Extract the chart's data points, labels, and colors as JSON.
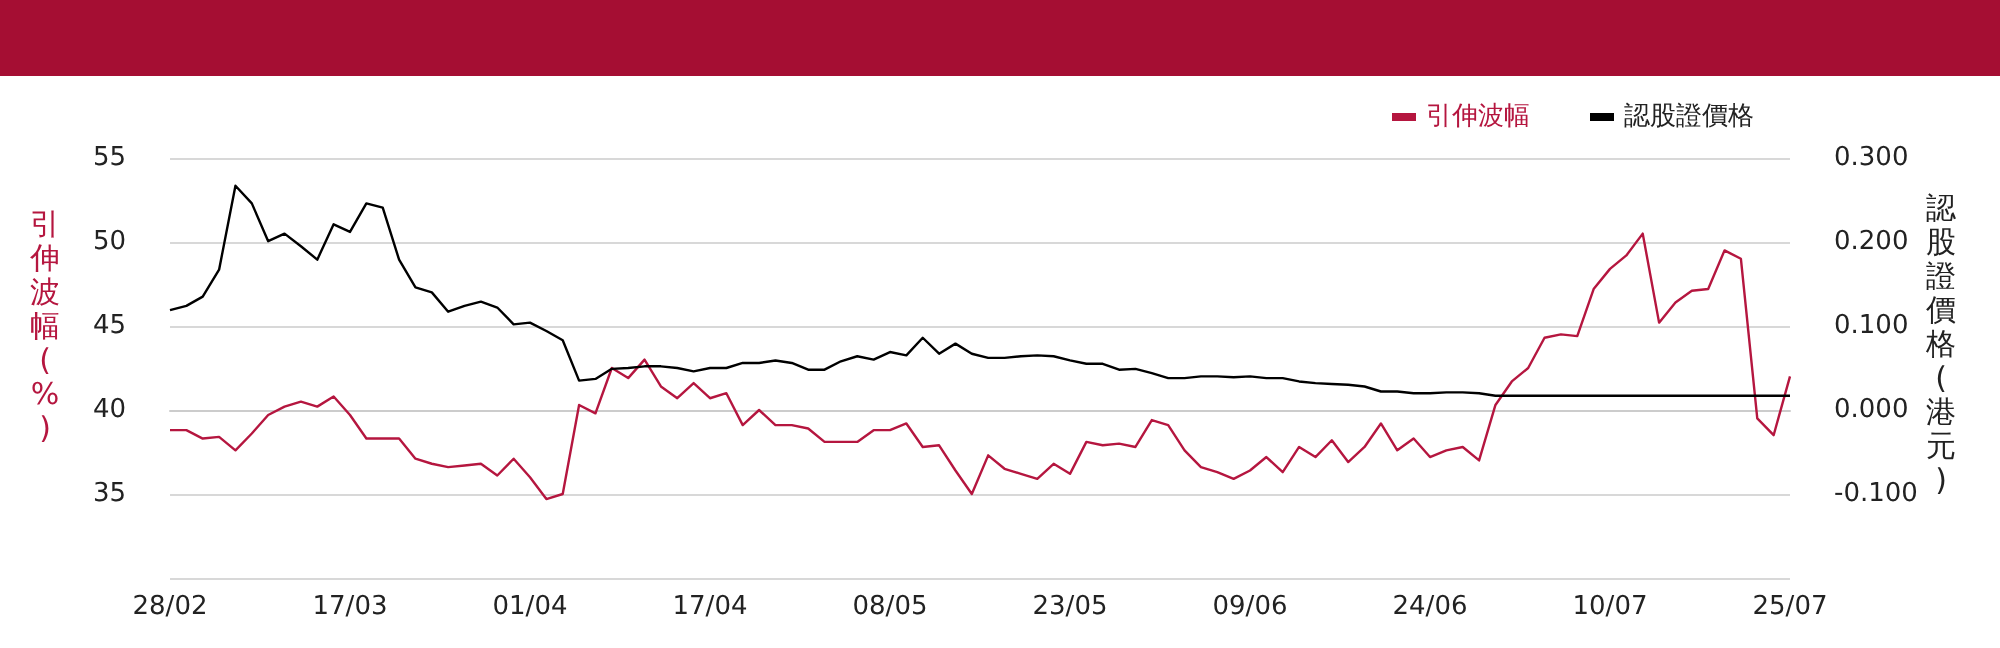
{
  "chart_data": {
    "type": "line",
    "categories": [
      "28/02",
      null,
      null,
      null,
      null,
      null,
      null,
      null,
      null,
      null,
      null,
      "17/03",
      null,
      null,
      null,
      null,
      null,
      null,
      null,
      null,
      null,
      null,
      "01/04",
      null,
      null,
      null,
      null,
      null,
      null,
      null,
      null,
      null,
      null,
      "17/04",
      null,
      null,
      null,
      null,
      null,
      null,
      null,
      null,
      null,
      null,
      "08/05",
      null,
      null,
      null,
      null,
      null,
      null,
      null,
      null,
      null,
      null,
      "23/05",
      null,
      null,
      null,
      null,
      null,
      null,
      null,
      null,
      null,
      null,
      "09/06",
      null,
      null,
      null,
      null,
      null,
      null,
      null,
      null,
      null,
      null,
      "24/06",
      null,
      null,
      null,
      null,
      null,
      null,
      null,
      null,
      null,
      null,
      "10/07",
      null,
      null,
      null,
      null,
      null,
      null,
      null,
      null,
      null,
      null,
      "25/07"
    ],
    "series": [
      {
        "name": "引伸波幅",
        "color": "#b5163f",
        "values": [
          38.8,
          38.8,
          38.3,
          38.4,
          37.6,
          38.6,
          39.7,
          40.2,
          40.5,
          40.2,
          40.8,
          39.7,
          38.3,
          38.3,
          38.3,
          37.1,
          36.8,
          36.6,
          36.7,
          36.8,
          36.1,
          37.1,
          36.0,
          34.7,
          35.0,
          40.3,
          39.8,
          42.5,
          41.9,
          43.0,
          41.4,
          40.7,
          41.6,
          40.7,
          41.0,
          39.1,
          40.0,
          39.1,
          39.1,
          38.9,
          38.1,
          38.1,
          38.1,
          38.8,
          38.8,
          39.2,
          37.8,
          37.9,
          36.4,
          35.0,
          37.3,
          36.5,
          36.2,
          35.9,
          36.8,
          36.2,
          38.1,
          37.9,
          38.0,
          37.8,
          39.4,
          39.1,
          37.6,
          36.6,
          36.3,
          35.9,
          36.4,
          37.2,
          36.3,
          37.8,
          37.2,
          38.2,
          36.9,
          37.8,
          39.2,
          37.6,
          38.3,
          37.2,
          37.6,
          37.8,
          37.0,
          40.3,
          41.7,
          42.5,
          44.3,
          44.5,
          44.4,
          47.2,
          48.4,
          49.2,
          50.5,
          45.2,
          46.4,
          47.1,
          47.2,
          49.5,
          49.0,
          39.5,
          38.5,
          42.0
        ]
      },
      {
        "name": "認股證價格",
        "color": "#000000",
        "axis": "y2",
        "values": [
          0.119,
          0.124,
          0.135,
          0.167,
          0.267,
          0.246,
          0.201,
          0.21,
          0.195,
          0.179,
          0.221,
          0.212,
          0.246,
          0.241,
          0.179,
          0.146,
          0.14,
          0.117,
          0.124,
          0.129,
          0.122,
          0.102,
          0.104,
          0.094,
          0.083,
          0.035,
          0.037,
          0.049,
          0.05,
          0.052,
          0.052,
          0.05,
          0.046,
          0.05,
          0.05,
          0.056,
          0.056,
          0.059,
          0.056,
          0.048,
          0.048,
          0.058,
          0.064,
          0.06,
          0.069,
          0.065,
          0.086,
          0.067,
          0.079,
          0.067,
          0.062,
          0.062,
          0.064,
          0.065,
          0.064,
          0.059,
          0.055,
          0.055,
          0.048,
          0.049,
          0.044,
          0.038,
          0.038,
          0.04,
          0.04,
          0.039,
          0.04,
          0.038,
          0.038,
          0.034,
          0.032,
          0.031,
          0.03,
          0.028,
          0.022,
          0.022,
          0.02,
          0.02,
          0.021,
          0.021,
          0.02,
          0.017,
          0.017,
          0.017,
          0.017,
          0.017,
          0.017,
          0.017,
          0.017,
          0.017,
          0.017,
          0.017,
          0.017,
          0.017,
          0.017,
          0.017,
          0.017,
          0.017,
          0.017,
          0.017
        ]
      }
    ],
    "ylabel": "引伸波幅(%)",
    "y2label": "認股證價格(港元)",
    "ylim": [
      30,
      55
    ],
    "yticks": [
      {
        "value": 30,
        "label": null
      },
      35,
      40,
      45,
      50,
      55
    ],
    "y2lim": [
      -0.2,
      0.3
    ],
    "y2ticks": [
      {
        "value": -0.2,
        "label": null
      },
      {
        "value": -0.1,
        "label": "-0.100"
      },
      {
        "value": 0,
        "label": "0.000"
      },
      {
        "value": 0.1,
        "label": "0.100"
      },
      {
        "value": 0.2,
        "label": "0.200"
      },
      {
        "value": 0.3,
        "label": "0.300"
      }
    ],
    "grid": "y",
    "legend": "top right",
    "marker": "none",
    "line_style": "solid"
  }
}
